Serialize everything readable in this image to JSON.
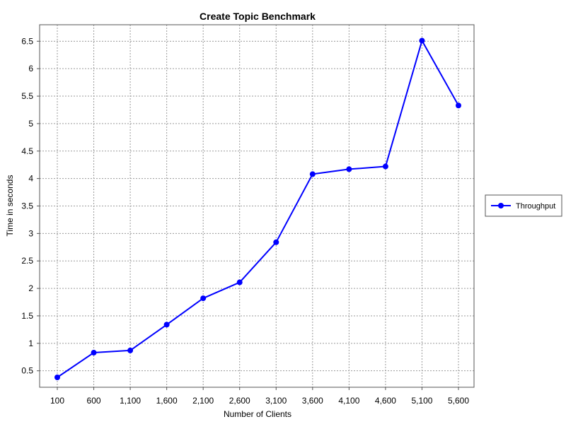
{
  "chart_data": {
    "type": "line",
    "title": "Create Topic Benchmark",
    "xlabel": "Number of Clients",
    "ylabel": "Time in seconds",
    "categories": [
      "100",
      "600",
      "1,100",
      "1,600",
      "2,100",
      "2,600",
      "3,100",
      "3,600",
      "4,100",
      "4,600",
      "5,100",
      "5,600"
    ],
    "x": [
      100,
      600,
      1100,
      1600,
      2100,
      2600,
      3100,
      3600,
      4100,
      4600,
      5100,
      5600
    ],
    "series": [
      {
        "name": "Throughput",
        "color": "#0000ff",
        "values": [
          0.38,
          0.83,
          0.87,
          1.34,
          1.82,
          2.11,
          2.84,
          4.08,
          4.17,
          4.22,
          6.51,
          5.33
        ]
      }
    ],
    "ylim": [
      0.2,
      6.8
    ],
    "yticks": [
      0.5,
      1,
      1.5,
      2,
      2.5,
      3,
      3.5,
      4,
      4.5,
      5,
      5.5,
      6,
      6.5
    ],
    "ytick_labels": [
      "0.5",
      "1",
      "1.5",
      "2",
      "2.5",
      "3",
      "3.5",
      "4",
      "4.5",
      "5",
      "5.5",
      "6",
      "6.5"
    ],
    "grid": true,
    "legend": "right"
  }
}
